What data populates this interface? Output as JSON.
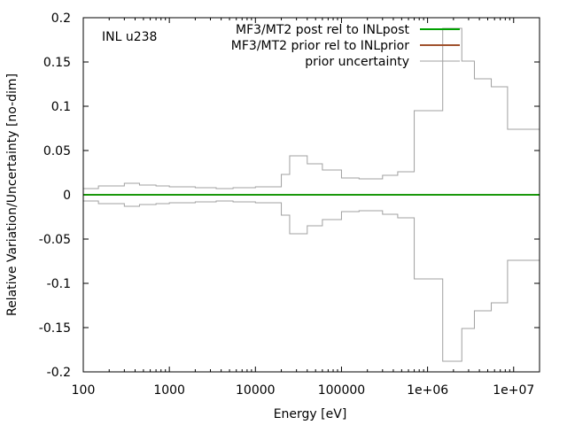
{
  "chart_data": {
    "type": "line",
    "title": "",
    "annotation": "INL u238",
    "xlabel": "Energy [eV]",
    "ylabel": "Relative Variation/Uncertainty [no-dim]",
    "xscale": "log",
    "xlim": [
      100,
      20000000
    ],
    "ylim": [
      -0.2,
      0.2
    ],
    "x_ticks": [
      {
        "value": 100,
        "label": "100"
      },
      {
        "value": 1000,
        "label": "1000"
      },
      {
        "value": 10000,
        "label": "10000"
      },
      {
        "value": 100000,
        "label": "100000"
      },
      {
        "value": 1000000,
        "label": "1e+06"
      },
      {
        "value": 10000000,
        "label": "1e+07"
      }
    ],
    "y_ticks": [
      {
        "value": 0.2,
        "label": "0.2"
      },
      {
        "value": 0.15,
        "label": "0.15"
      },
      {
        "value": 0.1,
        "label": "0.1"
      },
      {
        "value": 0.05,
        "label": "0.05"
      },
      {
        "value": 0,
        "label": "0"
      },
      {
        "value": -0.05,
        "label": "-0.05"
      },
      {
        "value": -0.1,
        "label": "-0.1"
      },
      {
        "value": -0.15,
        "label": "-0.15"
      },
      {
        "value": -0.2,
        "label": "-0.2"
      }
    ],
    "legend_position": "top-right",
    "grid": false,
    "series": [
      {
        "name": "MF3/MT2 post rel to INLpost",
        "color": "#00a000",
        "kind": "line",
        "x": [
          100,
          20000000
        ],
        "y": [
          0,
          0
        ]
      },
      {
        "name": "MF3/MT2 prior rel to INLprior",
        "color": "#a0522d",
        "kind": "line",
        "x": [
          100,
          20000000
        ],
        "y": [
          0,
          0
        ]
      },
      {
        "name": "prior uncertainty",
        "color": "#a0a0a0",
        "kind": "histogram-symmetric",
        "edges": [
          100,
          150,
          300,
          450,
          700,
          1000,
          2000,
          3500,
          5500,
          10000,
          20000,
          25000,
          40000,
          60000,
          100000,
          160000,
          300000,
          450000,
          700000,
          1500000,
          2500000,
          3500000,
          5500000,
          8500000,
          20000000
        ],
        "values": [
          0.007,
          0.01,
          0.013,
          0.011,
          0.01,
          0.009,
          0.008,
          0.007,
          0.008,
          0.009,
          0.023,
          0.044,
          0.035,
          0.028,
          0.019,
          0.018,
          0.022,
          0.026,
          0.095,
          0.188,
          0.151,
          0.131,
          0.122,
          0.074
        ]
      }
    ]
  }
}
